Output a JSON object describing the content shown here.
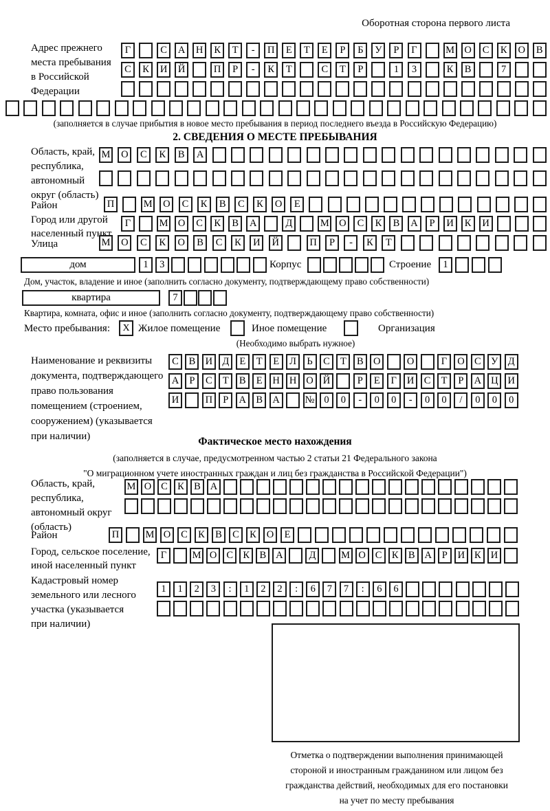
{
  "header_note": "Оборотная сторона первого листа",
  "prev_address": {
    "label_lines": [
      "Адрес прежнего",
      "места пребывания",
      "в Российской",
      "Федерации"
    ],
    "row1": "Г САНКТ-ПЕТЕРБУРГ МОСКОВ",
    "row2": "СКИЙ ПР-КТ СТР 13 КВ 7  ",
    "row3": "                        ",
    "row4": "                              ",
    "caption": "(заполняется в случае прибытия в новое место пребывания в период последнего въезда в Российскую Федерацию)"
  },
  "section2": {
    "title": "2. СВЕДЕНИЯ О МЕСТЕ ПРЕБЫВАНИЯ",
    "region_label_lines": [
      "Область, край,",
      "республика,",
      "автономный",
      "округ (область)"
    ],
    "region_row1": "МОСКВА                  ",
    "region_row2": "                        ",
    "district_label": "Район",
    "district_row": "П МОСКВСКОЕ             ",
    "city_label_lines": [
      "Город или другой",
      "населенный пункт"
    ],
    "city_row": "Г МОСКВА Д МОСКВАРИКИ   ",
    "street_label": "Улица",
    "street_row": "МОСКОВСКИЙ ПР-КТ        ",
    "house": {
      "type_value": "дом",
      "number_cells": "13      ",
      "korpus_label": "Корпус",
      "korpus_cells": "     ",
      "stroenie_label": "Строение",
      "stroenie_cells": "1   ",
      "caption": "Дом, участок, владение и иное (заполнить согласно документу, подтверждающему право собственности)"
    },
    "apartment": {
      "type_value": "квартира",
      "number_cells": "7   ",
      "caption": "Квартира, комната, офис и иное (заполнить согласно документу, подтверждающему право собственности)"
    },
    "stay_type": {
      "label": "Место пребывания:",
      "option1": {
        "checked": "X",
        "label": "Жилое помещение"
      },
      "option2": {
        "checked": " ",
        "label": "Иное помещение"
      },
      "option3": {
        "checked": " ",
        "label": "Организация"
      },
      "caption": "(Необходимо выбрать нужное)"
    },
    "document": {
      "label_lines": [
        "Наименование и реквизиты",
        "документа, подтверждающего",
        "право пользования",
        "помещением (строением,",
        "сооружением) (указывается",
        "при наличии)"
      ],
      "row1": "СВИДЕТЕЛЬСТВО О ГОСУД",
      "row2": "АРСТВЕННОЙ РЕГИСТРАЦИ",
      "row3": "И ПРАВА №00-00-00/000"
    }
  },
  "actual_location": {
    "title": "Фактическое место нахождения",
    "caption_line1": "(заполняется в случае, предусмотренном частью 2 статьи 21 Федерального закона",
    "caption_line2": "\"О миграционном учете иностранных граждан и лиц без гражданства в Российской Федерации\")",
    "region_label_lines": [
      "Область, край,",
      "республика,",
      "автономный округ",
      "(область)"
    ],
    "region_row1": "МОСКВА                  ",
    "region_row2": "                        ",
    "district_label": "Район",
    "district_row": "П МОСКВСКОЕ             ",
    "city_label_lines": [
      "Город, сельское поселение,",
      "иной населенный пункт"
    ],
    "city_row": "Г МОСКВА Д МОСКВАРИКИ ",
    "cadastral_label_lines": [
      "Кадастровый номер",
      "земельного или лесного",
      "участка (указывается",
      "при наличии)"
    ],
    "cadastral_row1": "1123:122:677:66       ",
    "cadastral_row2": "                      "
  },
  "stamp": {
    "caption_lines": [
      "Отметка о подтверждении выполнения принимающей",
      "стороной и иностранным гражданином или лицом без",
      "гражданства действий, необходимых для его постановки",
      "на учет по месту пребывания"
    ]
  }
}
